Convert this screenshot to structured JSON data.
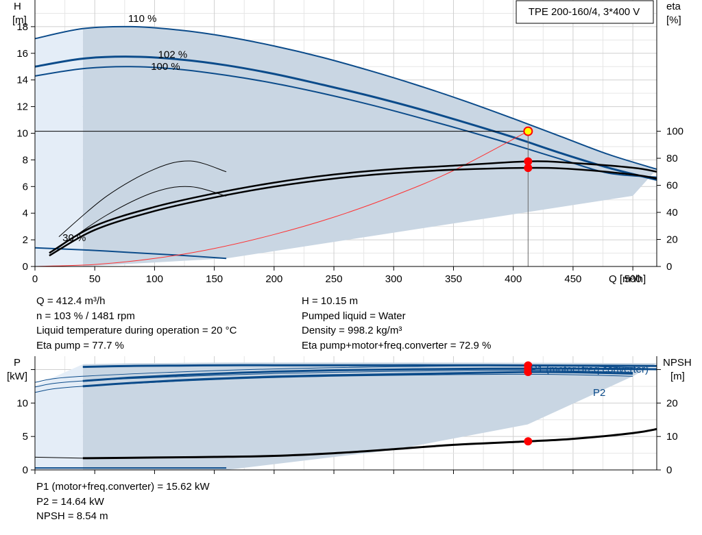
{
  "pump_model": "TPE 200-160/4, 3*400 V",
  "colors": {
    "curve_blue": "#0b4b8a",
    "region_fill": "#c9d6e3",
    "region_light": "#e4edf7",
    "op_point": "#ff0000",
    "system_curve": "#ff3030"
  },
  "chart_data": [
    {
      "type": "line",
      "title": "",
      "x_axis": {
        "label": "Q [m³/h]",
        "ticks": [
          "0",
          "50",
          "100",
          "150",
          "200",
          "250",
          "300",
          "350",
          "400",
          "450",
          "500"
        ],
        "range": [
          0,
          520
        ]
      },
      "y_left": {
        "label_line1": "H",
        "label_line2": "[m]",
        "ticks": [
          "0",
          "2",
          "4",
          "6",
          "8",
          "10",
          "12",
          "14",
          "16",
          "18"
        ],
        "range": [
          0,
          20
        ]
      },
      "y_right": {
        "label_line1": "eta",
        "label_line2": "[%]",
        "ticks": [
          "0",
          "20",
          "40",
          "60",
          "80",
          "100"
        ],
        "range": [
          0,
          100
        ]
      },
      "curve_labels": [
        "110 %",
        "102 %",
        "100 %",
        "30 %"
      ],
      "head_curves": [
        {
          "name": "110 %",
          "x": [
            0,
            40,
            80,
            120,
            160,
            200,
            240,
            280,
            320,
            360,
            400,
            440,
            480,
            520
          ],
          "y": [
            17.1,
            17.85,
            18.0,
            17.75,
            17.25,
            16.55,
            15.7,
            14.7,
            13.6,
            12.4,
            11.1,
            9.75,
            8.4,
            7.3
          ]
        },
        {
          "name": "102 %",
          "x": [
            0,
            40,
            80,
            120,
            160,
            200,
            240,
            280,
            320,
            360,
            400,
            440,
            480,
            520
          ],
          "y": [
            15.0,
            15.6,
            15.75,
            15.55,
            15.1,
            14.45,
            13.65,
            12.8,
            11.85,
            10.8,
            9.7,
            8.5,
            7.4,
            6.5
          ]
        },
        {
          "name": "100 %",
          "x": [
            0,
            40,
            80,
            120,
            160,
            200,
            240,
            280,
            320,
            360,
            400,
            440,
            480,
            520
          ],
          "y": [
            14.3,
            14.85,
            15.0,
            14.8,
            14.35,
            13.75,
            13.0,
            12.15,
            11.2,
            10.2,
            9.15,
            8.05,
            7.0,
            6.7
          ]
        },
        {
          "name": "30 %",
          "x": [
            0,
            40,
            80,
            120,
            160
          ],
          "y": [
            1.4,
            1.25,
            1.05,
            0.85,
            0.6
          ]
        }
      ],
      "system_curve": {
        "x": [
          0,
          50,
          100,
          150,
          200,
          250,
          300,
          350,
          412.4
        ],
        "y": [
          0,
          0.15,
          0.6,
          1.35,
          2.4,
          3.7,
          5.3,
          7.2,
          10.15
        ]
      },
      "efficiency_curves": [
        {
          "x": [
            12,
            50,
            100,
            150,
            200,
            250,
            300,
            350,
            412.4,
            450,
            500,
            520
          ],
          "y": [
            10,
            30,
            44,
            54,
            62,
            68,
            72,
            74.5,
            77.7,
            76.5,
            73,
            70
          ]
        },
        {
          "x": [
            12,
            50,
            100,
            150,
            200,
            250,
            300,
            350,
            412.4,
            450,
            500,
            520
          ],
          "y": [
            8,
            27,
            41,
            51,
            59,
            65,
            69,
            71.5,
            72.9,
            72,
            68,
            65
          ]
        },
        {
          "x": [
            20,
            60,
            100,
            130,
            160
          ],
          "y": [
            22,
            52,
            72,
            78,
            70
          ]
        },
        {
          "x": [
            20,
            60,
            100,
            130,
            160
          ],
          "y": [
            14,
            38,
            55,
            59,
            52
          ]
        }
      ],
      "operating_point": {
        "q": 412.4,
        "h": 10.15
      }
    },
    {
      "type": "line",
      "title": "",
      "y_left": {
        "label_line1": "P",
        "label_line2": "[kW]",
        "ticks": [
          "0",
          "5",
          "10"
        ],
        "range": [
          0,
          17
        ]
      },
      "y_right": {
        "label_line1": "NPSH",
        "label_line2": "[m]",
        "ticks": [
          "0",
          "10",
          "20"
        ],
        "range": [
          0,
          34
        ]
      },
      "series_labels": [
        "P1 (motor+freq.converter)",
        "P2"
      ],
      "power_curves": [
        {
          "name": "P1 (motor+freq.converter)",
          "x": [
            40,
            80,
            120,
            160,
            200,
            250,
            300,
            350,
            412.4,
            450,
            520
          ],
          "y": [
            15.4,
            15.55,
            15.6,
            15.65,
            15.65,
            15.65,
            15.65,
            15.65,
            15.62,
            15.6,
            15.55
          ]
        },
        {
          "name": "P2",
          "x": [
            40,
            80,
            120,
            160,
            200,
            250,
            300,
            350,
            412.4,
            450,
            500
          ],
          "y": [
            12.5,
            13.0,
            13.4,
            13.7,
            13.95,
            14.15,
            14.3,
            14.45,
            14.64,
            14.6,
            14.4
          ]
        },
        {
          "x": [
            40,
            80,
            120,
            160,
            200,
            250,
            300,
            350,
            412.4,
            450,
            520
          ],
          "y": [
            13.3,
            13.8,
            14.15,
            14.45,
            14.7,
            14.9,
            15.0,
            15.1,
            15.15,
            15.15,
            15.05
          ]
        }
      ],
      "npsh_curve": {
        "x": [
          40,
          100,
          150,
          200,
          250,
          300,
          350,
          412.4,
          450,
          500,
          520
        ],
        "y": [
          3.5,
          3.7,
          3.9,
          4.2,
          5.0,
          6.2,
          7.5,
          8.54,
          9.3,
          11.0,
          12.2
        ]
      },
      "operating_points_power": [
        15.62,
        15.15,
        14.64
      ],
      "operating_point_npsh": 8.54
    }
  ],
  "info_top": {
    "left": [
      "Q = 412.4 m³/h",
      "n = 103 % / 1481 rpm",
      "Liquid temperature during operation = 20 °C",
      "Eta pump = 77.7 %"
    ],
    "right": [
      "H = 10.15 m",
      "Pumped liquid = Water",
      "Density = 998.2 kg/m³",
      "Eta pump+motor+freq.converter = 72.9 %"
    ]
  },
  "info_bottom": [
    "P1 (motor+freq.converter) = 15.62 kW",
    "P2 = 14.64 kW",
    "NPSH = 8.54 m"
  ]
}
